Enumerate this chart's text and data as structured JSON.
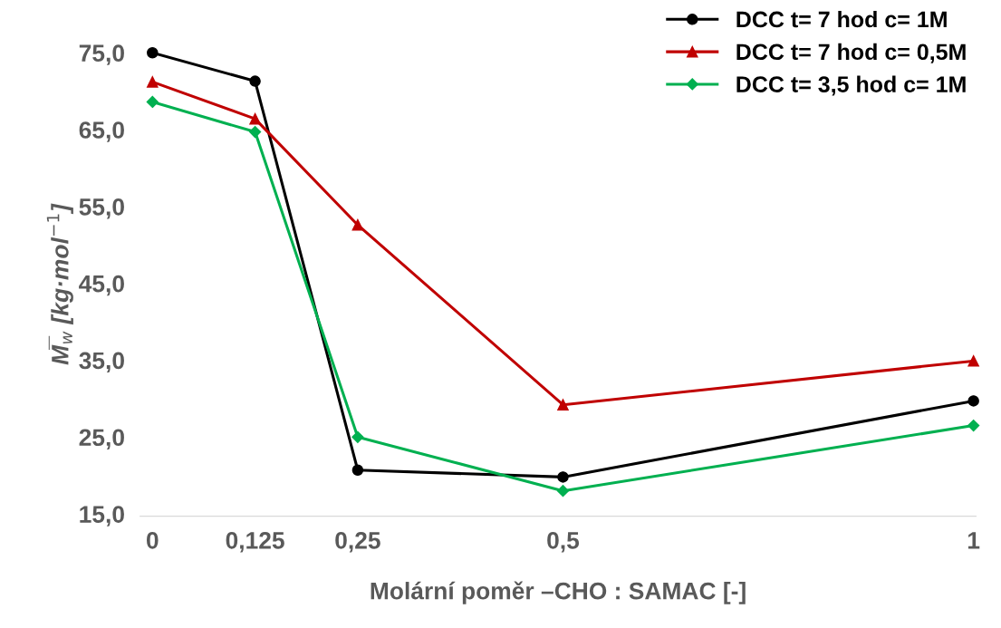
{
  "chart_data": {
    "type": "line",
    "xlabel": "Molární poměr –CHO : SAMAC [-]",
    "ylabel": "M̅$_{w}$ [kg·mol$^{−1}$]",
    "x": [
      0,
      0.125,
      0.25,
      0.5,
      1
    ],
    "series": [
      {
        "name": "DCC t= 7 hod c= 1M",
        "color": "#000000",
        "marker": "circle",
        "values": [
          75.0,
          71.3,
          20.7,
          19.8,
          29.7
        ]
      },
      {
        "name": "DCC t= 7 hod c= 0,5M",
        "color": "#c00000",
        "marker": "triangle",
        "values": [
          71.2,
          66.4,
          52.6,
          29.2,
          34.9
        ]
      },
      {
        "name": "DCC t= 3,5 hod c= 1M",
        "color": "#00b050",
        "marker": "diamond",
        "values": [
          68.6,
          64.7,
          25.0,
          18.0,
          26.5
        ]
      }
    ],
    "xlim": [
      -0.015,
      1.003
    ],
    "ylim": [
      14.7,
      75
    ],
    "xticks": [
      {
        "value": 0,
        "label": "0"
      },
      {
        "value": 0.125,
        "label": "0,125"
      },
      {
        "value": 0.25,
        "label": "0,25"
      },
      {
        "value": 0.5,
        "label": "0,5"
      },
      {
        "value": 1,
        "label": "1"
      }
    ],
    "yticks": [
      {
        "value": 15,
        "label": "15,0"
      },
      {
        "value": 25,
        "label": "25,0"
      },
      {
        "value": 35,
        "label": "35,0"
      },
      {
        "value": 45,
        "label": "45,0"
      },
      {
        "value": 55,
        "label": "55,0"
      },
      {
        "value": 65,
        "label": "65,0"
      },
      {
        "value": 75,
        "label": "75,0"
      }
    ],
    "grid": false,
    "legend": "top right",
    "line_style": "solid"
  }
}
